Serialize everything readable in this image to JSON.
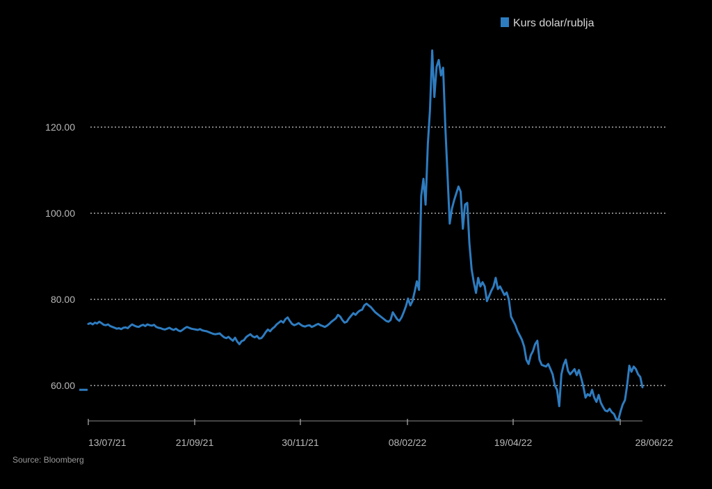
{
  "chart_data": {
    "type": "line",
    "title": "",
    "xlabel": "",
    "ylabel": "",
    "y_ticks": [
      60,
      80,
      100,
      120
    ],
    "y_tick_labels": [
      "60.00",
      "80.00",
      "100.00",
      "120.00"
    ],
    "ylim": [
      52,
      140
    ],
    "x_tick_labels": [
      "13/07/21",
      "21/09/21",
      "30/11/21",
      "08/02/22",
      "19/04/22",
      "28/06/22"
    ],
    "grid": "horizontal dotted",
    "legend_position": "top-right",
    "source": "Source: Bloomberg",
    "series": [
      {
        "name": "Kurs dolar/rublja",
        "color": "#2e7cc0",
        "values": [
          74.3,
          74.5,
          74.2,
          74.6,
          74.4,
          74.8,
          74.5,
          74.1,
          74.0,
          74.2,
          73.8,
          73.6,
          73.4,
          73.2,
          73.3,
          73.1,
          73.4,
          73.5,
          73.3,
          73.8,
          74.2,
          73.9,
          73.7,
          73.6,
          73.9,
          74.1,
          73.8,
          74.2,
          74.0,
          73.9,
          74.1,
          73.6,
          73.4,
          73.3,
          73.1,
          73.0,
          73.2,
          73.4,
          73.1,
          72.9,
          73.2,
          72.8,
          72.6,
          72.9,
          73.3,
          73.6,
          73.4,
          73.2,
          73.1,
          73.0,
          72.9,
          73.1,
          72.8,
          72.7,
          72.6,
          72.4,
          72.2,
          72.0,
          71.9,
          72.0,
          72.1,
          71.6,
          71.2,
          71.0,
          71.3,
          70.8,
          70.4,
          71.1,
          70.2,
          69.6,
          70.3,
          70.5,
          71.2,
          71.6,
          71.9,
          71.4,
          71.2,
          71.5,
          70.9,
          71.0,
          71.6,
          72.4,
          73.0,
          72.6,
          73.2,
          73.6,
          74.2,
          74.6,
          75.0,
          74.6,
          75.4,
          75.8,
          75.0,
          74.3,
          74.0,
          74.2,
          74.5,
          74.1,
          73.8,
          73.7,
          73.9,
          74.0,
          73.6,
          73.8,
          74.1,
          74.3,
          74.0,
          73.8,
          73.6,
          73.9,
          74.3,
          74.8,
          75.2,
          75.6,
          76.4,
          76.0,
          75.2,
          74.6,
          74.8,
          75.6,
          76.2,
          76.8,
          76.4,
          77.0,
          77.4,
          77.6,
          78.6,
          79.0,
          78.6,
          78.2,
          77.6,
          77.0,
          76.6,
          76.2,
          75.8,
          75.4,
          75.0,
          74.8,
          75.2,
          77.0,
          76.2,
          75.4,
          75.0,
          75.8,
          77.0,
          78.4,
          80.2,
          78.6,
          79.6,
          81.8,
          84.2,
          82.2,
          104.0,
          108.0,
          102.0,
          116.0,
          124.0,
          137.8,
          127.0,
          134.0,
          135.6,
          132.0,
          133.8,
          120.0,
          109.0,
          97.6,
          101.0,
          103.0,
          104.6,
          106.2,
          105.0,
          96.4,
          102.0,
          102.4,
          93.0,
          87.0,
          84.0,
          81.5,
          85.0,
          83.0,
          84.0,
          83.0,
          79.6,
          80.8,
          82.0,
          83.0,
          85.0,
          82.4,
          83.0,
          82.0,
          81.0,
          81.6,
          80.0,
          76.0,
          75.0,
          74.0,
          72.6,
          71.6,
          70.6,
          69.0,
          66.0,
          65.0,
          67.0,
          68.0,
          69.6,
          70.4,
          66.0,
          64.8,
          64.6,
          64.4,
          65.0,
          63.8,
          62.6,
          60.0,
          59.0,
          55.2,
          62.6,
          64.8,
          66.0,
          63.4,
          62.6,
          63.2,
          63.8,
          62.4,
          63.6,
          61.8,
          59.8,
          57.2,
          58.0,
          57.6,
          59.0,
          57.2,
          56.2,
          57.8,
          56.0,
          55.0,
          54.2,
          54.0,
          54.6,
          53.8,
          53.4,
          52.2,
          52.0,
          54.0,
          55.6,
          56.6,
          60.0,
          64.6,
          63.2,
          64.4,
          63.8,
          62.6,
          62.0,
          59.6
        ]
      }
    ]
  }
}
